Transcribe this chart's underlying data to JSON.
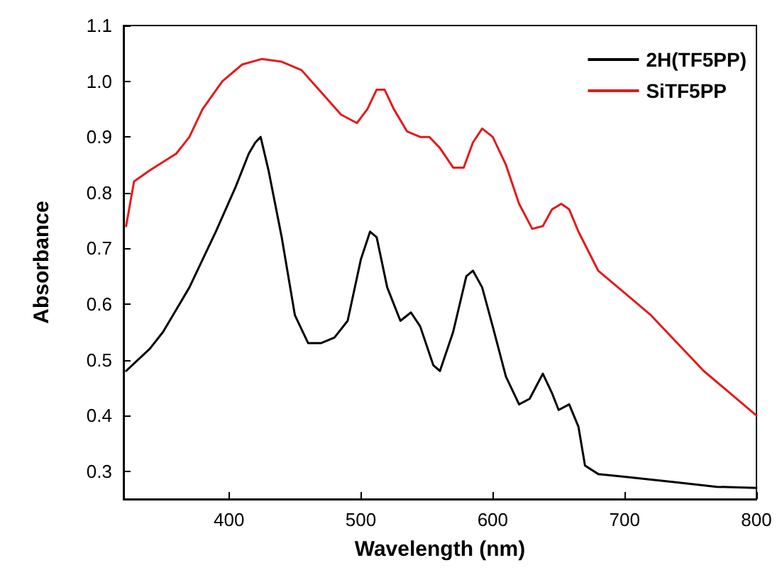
{
  "chart_data": {
    "type": "line",
    "xlabel": "Wavelength (nm)",
    "ylabel": "Absorbance",
    "xlim": [
      320,
      800
    ],
    "ylim": [
      0.25,
      1.1
    ],
    "xticks": [
      400,
      500,
      600,
      700,
      800
    ],
    "yticks": [
      0.3,
      0.4,
      0.5,
      0.6,
      0.7,
      0.8,
      0.9,
      {
        "value": 1,
        "label": "1.0"
      },
      1.1
    ],
    "grid": false,
    "legend": "top right",
    "marker": "none",
    "line_style": "solid",
    "series": [
      {
        "name": "2H(TF5PP)",
        "color": "#000000",
        "x": [
          322,
          340,
          350,
          370,
          390,
          405,
          415,
          420,
          424,
          430,
          440,
          450,
          460,
          470,
          480,
          490,
          500,
          507,
          512,
          520,
          530,
          538,
          545,
          555,
          560,
          570,
          580,
          585,
          592,
          600,
          610,
          620,
          628,
          638,
          645,
          650,
          658,
          665,
          670,
          680,
          700,
          740,
          770,
          800
        ],
        "values": [
          0.48,
          0.52,
          0.55,
          0.63,
          0.73,
          0.81,
          0.87,
          0.89,
          0.9,
          0.84,
          0.72,
          0.58,
          0.53,
          0.53,
          0.54,
          0.57,
          0.68,
          0.73,
          0.72,
          0.63,
          0.57,
          0.585,
          0.56,
          0.49,
          0.48,
          0.55,
          0.65,
          0.66,
          0.63,
          0.56,
          0.47,
          0.42,
          0.43,
          0.475,
          0.44,
          0.41,
          0.42,
          0.38,
          0.31,
          0.295,
          0.29,
          0.28,
          0.272,
          0.27
        ]
      },
      {
        "name": "SiTF5PP",
        "color": "#e31a1c",
        "x": [
          322,
          328,
          340,
          360,
          370,
          380,
          395,
          410,
          425,
          440,
          455,
          470,
          485,
          497,
          505,
          512,
          518,
          525,
          535,
          545,
          552,
          560,
          570,
          578,
          585,
          592,
          600,
          610,
          620,
          630,
          638,
          645,
          652,
          658,
          665,
          680,
          700,
          720,
          740,
          760,
          780,
          800
        ],
        "values": [
          0.74,
          0.82,
          0.84,
          0.87,
          0.9,
          0.95,
          1.0,
          1.03,
          1.04,
          1.035,
          1.02,
          0.98,
          0.94,
          0.925,
          0.95,
          0.985,
          0.985,
          0.95,
          0.91,
          0.9,
          0.9,
          0.88,
          0.845,
          0.845,
          0.89,
          0.915,
          0.9,
          0.85,
          0.78,
          0.735,
          0.74,
          0.77,
          0.78,
          0.77,
          0.73,
          0.66,
          0.62,
          0.58,
          0.53,
          0.48,
          0.44,
          0.4
        ]
      }
    ]
  }
}
